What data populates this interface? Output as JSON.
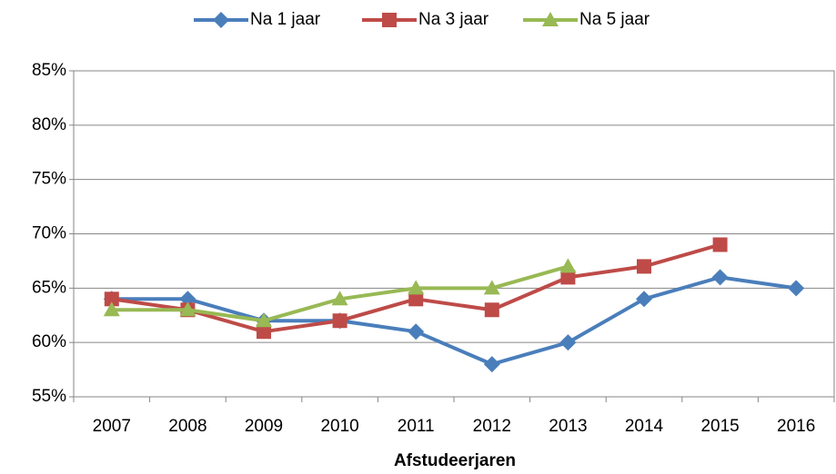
{
  "chart_data": {
    "type": "line",
    "x_label": "Afstudeerjaren",
    "categories": [
      "2007",
      "2008",
      "2009",
      "2010",
      "2011",
      "2012",
      "2013",
      "2014",
      "2015",
      "2016"
    ],
    "series": [
      {
        "name": "Na 1 jaar",
        "color": "#4a7ebb",
        "marker": "diamond",
        "values": [
          64,
          64,
          62,
          62,
          61,
          58,
          60,
          64,
          66,
          65
        ]
      },
      {
        "name": "Na 3 jaar",
        "color": "#be4b48",
        "marker": "square",
        "values": [
          64,
          63,
          61,
          62,
          64,
          63,
          66,
          67,
          69,
          null
        ]
      },
      {
        "name": "Na 5 jaar",
        "color": "#98b954",
        "marker": "triangle",
        "values": [
          63,
          63,
          62,
          64,
          65,
          65,
          67,
          null,
          null,
          null
        ]
      }
    ],
    "ylim": [
      55,
      85
    ],
    "yticks": [
      {
        "value": 55,
        "label": "55%"
      },
      {
        "value": 60,
        "label": "60%"
      },
      {
        "value": 65,
        "label": "65%"
      },
      {
        "value": 70,
        "label": "70%"
      },
      {
        "value": 75,
        "label": "75%"
      },
      {
        "value": 80,
        "label": "80%"
      },
      {
        "value": 85,
        "label": "85%"
      }
    ],
    "grid": true,
    "legend": "top"
  }
}
